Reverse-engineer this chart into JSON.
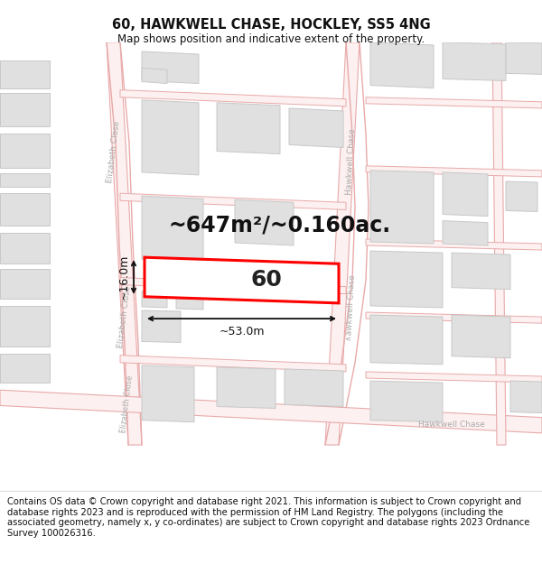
{
  "title": "60, HAWKWELL CHASE, HOCKLEY, SS5 4NG",
  "subtitle": "Map shows position and indicative extent of the property.",
  "title_fontsize": 10.5,
  "subtitle_fontsize": 8.5,
  "area_text": "~647m²/~0.160ac.",
  "area_fontsize": 17,
  "number_text": "60",
  "number_fontsize": 18,
  "dim_width": "~53.0m",
  "dim_height": "~16.0m",
  "dim_fontsize": 9,
  "footer_text": "Contains OS data © Crown copyright and database right 2021. This information is subject to Crown copyright and database rights 2023 and is reproduced with the permission of HM Land Registry. The polygons (including the associated geometry, namely x, y co-ordinates) are subject to Crown copyright and database rights 2023 Ordnance Survey 100026316.",
  "footer_fontsize": 7.2,
  "bg_color": "#ffffff",
  "map_bg": "#ffffff",
  "road_color": "#e8aaaa",
  "building_color": "#e0e0e0",
  "building_edge": "#c8c8c8",
  "highlight_color": "#ff0000",
  "street_label_color": "#aaaaaa",
  "road_fill": "#fdf0f0"
}
